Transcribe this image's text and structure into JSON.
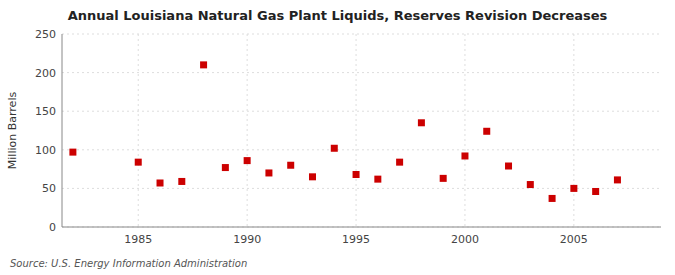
{
  "chart_data": {
    "type": "scatter",
    "title": "Annual Louisiana Natural Gas Plant Liquids, Reserves Revision Decreases",
    "ylabel": "Million Barrels",
    "annotations": [
      "Source: U.S. Energy Information Administration"
    ],
    "x": [
      1982,
      1985,
      1986,
      1987,
      1988,
      1989,
      1990,
      1991,
      1992,
      1993,
      1994,
      1995,
      1996,
      1997,
      1998,
      1999,
      2000,
      2001,
      2002,
      2003,
      2004,
      2005,
      2006,
      2007
    ],
    "values": [
      97,
      84,
      57,
      59,
      210,
      77,
      86,
      70,
      80,
      65,
      102,
      68,
      62,
      84,
      135,
      63,
      92,
      124,
      79,
      55,
      37,
      50,
      46,
      61
    ],
    "color": "#cc0000",
    "marker": "square",
    "xlim": [
      1981.5,
      2009
    ],
    "ylim": [
      0,
      250
    ],
    "xticks": [
      1985,
      1990,
      1995,
      2000,
      2005
    ],
    "yticks": [
      0,
      50,
      100,
      150,
      200,
      250
    ],
    "grid": true
  }
}
